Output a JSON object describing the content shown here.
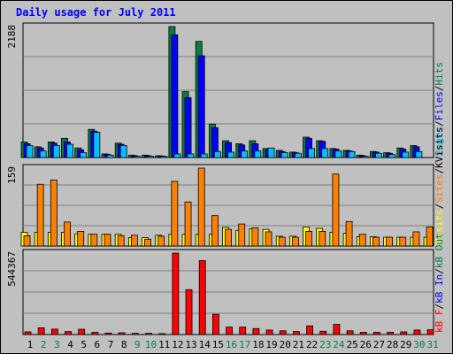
{
  "chart_data": {
    "title": "Daily usage for July 2011",
    "type": "bar",
    "categories": [
      "1",
      "2",
      "3",
      "4",
      "5",
      "6",
      "7",
      "8",
      "9",
      "10",
      "11",
      "12",
      "13",
      "14",
      "15",
      "16",
      "17",
      "18",
      "19",
      "20",
      "21",
      "22",
      "23",
      "24",
      "25",
      "26",
      "27",
      "28",
      "29",
      "30",
      "31"
    ],
    "weekend_days": [
      "2",
      "3",
      "9",
      "10",
      "16",
      "17",
      "23",
      "24",
      "30",
      "31"
    ],
    "colors": {
      "hits": "#008040",
      "files": "#0000ff",
      "pages": "#00c0ff",
      "visits": "#ffff00",
      "sites": "#ff8000",
      "kb_f": "#ff0000",
      "kb_in": "#0000ff",
      "kb_out": "#008040",
      "day_label": "#000000",
      "weekend_label": "#008040"
    },
    "panels": [
      {
        "id": "top",
        "ymax_label": "2188",
        "legend": [
          {
            "text": "Pages",
            "color": "#00c0ff"
          },
          {
            "text": "/",
            "color": "#000000"
          },
          {
            "text": "Files",
            "color": "#0000ff"
          },
          {
            "text": "/",
            "color": "#000000"
          },
          {
            "text": "Hits",
            "color": "#008040"
          }
        ],
        "ylim": [
          0,
          2188
        ],
        "series": [
          {
            "name": "Hits",
            "values": [
              260,
              180,
              260,
              320,
              160,
              470,
              60,
              240,
              40,
              40,
              30,
              2188,
              1100,
              1940,
              560,
              280,
              230,
              280,
              150,
              120,
              90,
              340,
              280,
              150,
              120,
              40,
              100,
              80,
              160,
              200,
              0
            ]
          },
          {
            "name": "Files",
            "values": [
              230,
              160,
              240,
              260,
              130,
              440,
              50,
              220,
              30,
              30,
              25,
              2050,
              1000,
              1700,
              500,
              250,
              210,
              230,
              130,
              100,
              80,
              320,
              270,
              140,
              110,
              30,
              90,
              70,
              140,
              180,
              0
            ]
          },
          {
            "name": "Pages",
            "values": [
              200,
              110,
              200,
              220,
              80,
              420,
              40,
              200,
              20,
              20,
              20,
              60,
              60,
              60,
              100,
              90,
              110,
              110,
              160,
              80,
              70,
              150,
              150,
              110,
              100,
              20,
              70,
              50,
              90,
              100,
              0
            ]
          }
        ]
      },
      {
        "id": "middle",
        "ymax_label": "159",
        "legend": [
          {
            "text": "Visits",
            "color": "#ffff00"
          },
          {
            "text": "/",
            "color": "#000000"
          },
          {
            "text": "Sites",
            "color": "#ff8000"
          },
          {
            "text": "/",
            "color": "#000000"
          },
          {
            "text": "KVisits",
            "color": "#000000"
          }
        ],
        "ylim": [
          0,
          159
        ],
        "series": [
          {
            "name": "Visits",
            "values": [
              28,
              28,
              28,
              28,
              25,
              24,
              24,
              24,
              17,
              17,
              22,
              24,
              24,
              24,
              24,
              38,
              32,
              35,
              34,
              20,
              20,
              39,
              36,
              28,
              26,
              19,
              19,
              18,
              18,
              18,
              18
            ]
          },
          {
            "name": "Sites",
            "values": [
              21,
              126,
              135,
              49,
              30,
              24,
              24,
              21,
              22,
              14,
              20,
              132,
              90,
              159,
              62,
              34,
              45,
              37,
              29,
              18,
              18,
              30,
              30,
              147,
              50,
              24,
              18,
              18,
              18,
              29,
              39
            ]
          }
        ]
      },
      {
        "id": "bottom",
        "ymax_label": "544367",
        "legend": [
          {
            "text": "kB F",
            "color": "#ff0000"
          },
          {
            "text": "/",
            "color": "#000000"
          },
          {
            "text": "kB In",
            "color": "#0000ff"
          },
          {
            "text": "/",
            "color": "#000000"
          },
          {
            "text": "kB Out",
            "color": "#008040"
          }
        ],
        "ylim": [
          0,
          544367
        ],
        "series": [
          {
            "name": "kB F",
            "values": [
              18000,
              45000,
              36000,
              20000,
              35000,
              15000,
              10000,
              12000,
              8000,
              8000,
              6000,
              544367,
              300000,
              494000,
              135000,
              50000,
              50000,
              40000,
              30000,
              25000,
              20000,
              58000,
              22000,
              68000,
              25000,
              15000,
              15000,
              15000,
              18000,
              30000,
              32000
            ]
          }
        ]
      }
    ]
  }
}
